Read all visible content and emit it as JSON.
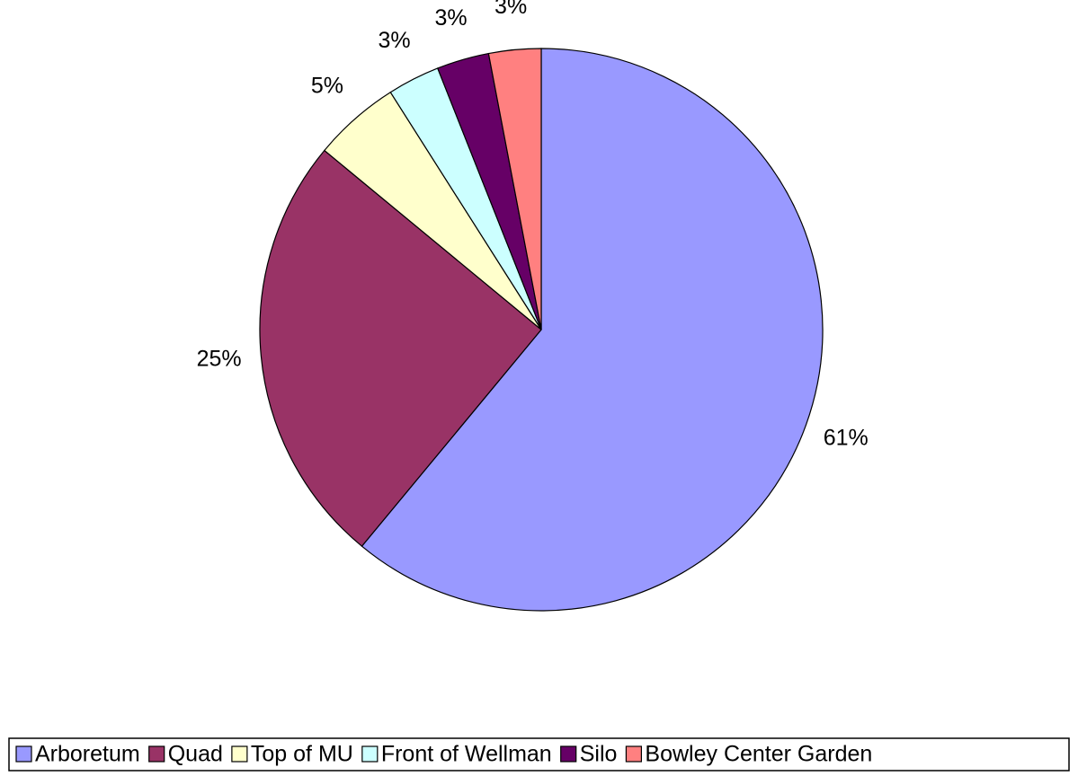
{
  "chart_data": {
    "type": "pie",
    "categories": [
      "Arboretum",
      "Quad",
      "Top of MU",
      "Front of Wellman",
      "Silo",
      "Bowley Center Garden"
    ],
    "values": [
      61,
      25,
      5,
      3,
      3,
      3
    ],
    "value_labels": [
      "61%",
      "25%",
      "5%",
      "3%",
      "3%",
      "3%"
    ],
    "colors": [
      "#9999ff",
      "#993366",
      "#ffffcc",
      "#ccffff",
      "#660066",
      "#ff8080"
    ],
    "legend": "bottom"
  }
}
